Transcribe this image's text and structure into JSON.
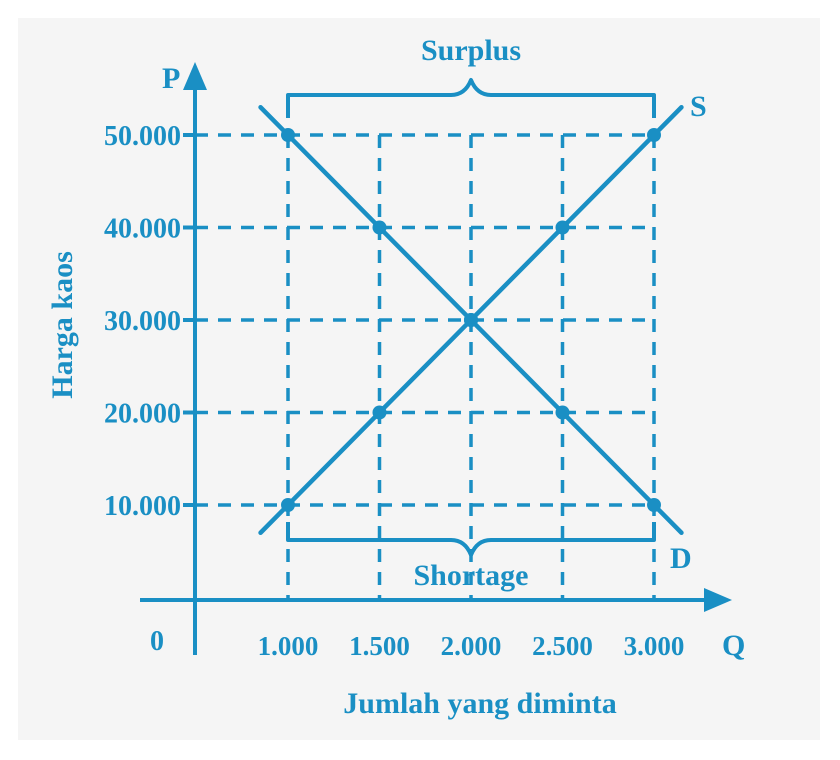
{
  "chart_data": {
    "type": "line",
    "title": "",
    "xlabel": "Jumlah yang diminta",
    "ylabel": "Harga kaos",
    "x_axis_symbol": "Q",
    "y_axis_symbol": "P",
    "origin_label": "0",
    "x_ticks": [
      1000,
      1500,
      2000,
      2500,
      3000
    ],
    "x_tick_labels": [
      "1.000",
      "1.500",
      "2.000",
      "2.500",
      "3.000"
    ],
    "y_ticks": [
      10000,
      20000,
      30000,
      40000,
      50000
    ],
    "y_tick_labels": [
      "10.000",
      "20.000",
      "30.000",
      "40.000",
      "50.000"
    ],
    "xlim": [
      0,
      3300
    ],
    "ylim": [
      0,
      56000
    ],
    "grid": "dashed at tick values",
    "series": [
      {
        "name": "S",
        "points": [
          [
            1000,
            10000
          ],
          [
            1500,
            20000
          ],
          [
            2000,
            30000
          ],
          [
            2500,
            40000
          ],
          [
            3000,
            50000
          ]
        ],
        "extend": [
          [
            850,
            7000
          ],
          [
            3150,
            53000
          ]
        ]
      },
      {
        "name": "D",
        "points": [
          [
            1000,
            50000
          ],
          [
            1500,
            40000
          ],
          [
            2000,
            30000
          ],
          [
            2500,
            20000
          ],
          [
            3000,
            10000
          ]
        ],
        "extend": [
          [
            850,
            53000
          ],
          [
            3150,
            7000
          ]
        ]
      }
    ],
    "annotations": [
      {
        "label": "Surplus",
        "type": "bracket",
        "position": "top",
        "x_range": [
          1000,
          3000
        ],
        "at_price": 50000
      },
      {
        "label": "Shortage",
        "type": "bracket",
        "position": "bottom",
        "x_range": [
          1000,
          3000
        ],
        "at_price": 10000
      }
    ],
    "colors": {
      "line": "#1a8fc4",
      "text": "#1a8fc4",
      "background": "#f5f5f5"
    }
  }
}
